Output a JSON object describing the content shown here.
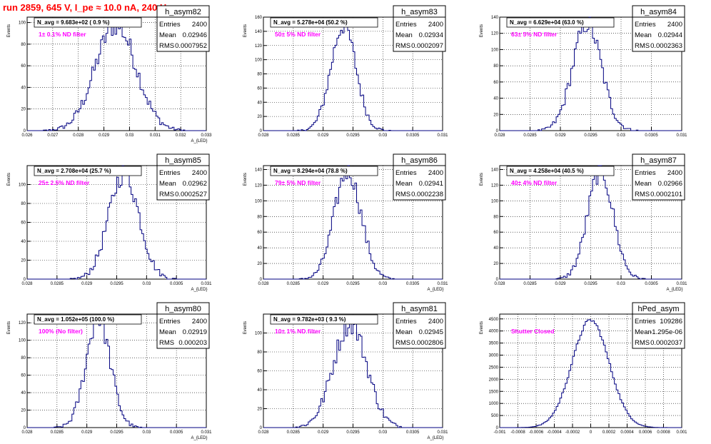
{
  "run_title": "run 2859,   645 V, I_pe ≈ 10.0 nA, 240 Hz",
  "colors": {
    "histogram": "#000080",
    "title": "#ff0000",
    "annotation": "#ff00ff",
    "grid": "#000000"
  },
  "chart_data": [
    {
      "type": "bar",
      "name": "h_asym82",
      "ylabel": "Events",
      "xlabel": "A_{LED}",
      "navg": "N_avg = 9.683e+02 ( 0.9 %)",
      "filter": "1± 0.1% ND filter",
      "stats": [
        [
          "Entries",
          "2400"
        ],
        [
          "Mean",
          "0.02946"
        ],
        [
          "RMS",
          "0.0007952"
        ]
      ],
      "xlim": [
        0.026,
        0.033
      ],
      "ylim": [
        0,
        105
      ],
      "xticks": [
        "0.026",
        "0.027",
        "0.028",
        "0.029",
        "0.03",
        "0.031",
        "0.032",
        "0.033"
      ],
      "yticks": [
        0,
        20,
        40,
        60,
        80,
        100
      ],
      "mean": 0.02946,
      "rms": 0.0007952,
      "peak": 98
    },
    {
      "type": "bar",
      "name": "h_asym83",
      "ylabel": "Events",
      "xlabel": "",
      "navg": "N_avg = 5.278e+04 (50.2 %)",
      "filter": "50± 5% ND filter",
      "stats": [
        [
          "Entries",
          "2400"
        ],
        [
          "Mean",
          "0.02934"
        ],
        [
          "RMS",
          "0.0002097"
        ]
      ],
      "xlim": [
        0.028,
        0.031
      ],
      "ylim": [
        0,
        160
      ],
      "xticks": [
        "0.028",
        "0.0285",
        "0.029",
        "0.0295",
        "0.03",
        "0.0305",
        "0.031"
      ],
      "yticks": [
        0,
        20,
        40,
        60,
        80,
        100,
        120,
        140,
        160
      ],
      "mean": 0.02934,
      "rms": 0.0002097,
      "peak": 148
    },
    {
      "type": "bar",
      "name": "h_asym84",
      "ylabel": "Events",
      "xlabel": "",
      "navg": "N_avg = 6.629e+04 (63.0 %)",
      "filter": "63± 5% ND filter",
      "stats": [
        [
          "Entries",
          "2400"
        ],
        [
          "Mean",
          "0.02944"
        ],
        [
          "RMS",
          "0.0002363"
        ]
      ],
      "xlim": [
        0.028,
        0.031
      ],
      "ylim": [
        0,
        140
      ],
      "xticks": [
        "0.028",
        "0.0285",
        "0.029",
        "0.0295",
        "0.03",
        "0.0305",
        "0.031"
      ],
      "yticks": [
        0,
        20,
        40,
        60,
        80,
        100,
        120,
        140
      ],
      "mean": 0.02944,
      "rms": 0.0002363,
      "peak": 132
    },
    {
      "type": "bar",
      "name": "h_asym85",
      "ylabel": "Events",
      "xlabel": "A_{LED}",
      "navg": "N_avg = 2.708e+04 (25.7 %)",
      "filter": "25± 2.5% ND filter",
      "stats": [
        [
          "Entries",
          "2400"
        ],
        [
          "Mean",
          "0.02962"
        ],
        [
          "RMS",
          "0.0002527"
        ]
      ],
      "xlim": [
        0.028,
        0.031
      ],
      "ylim": [
        0,
        120
      ],
      "xticks": [
        "0.028",
        "0.0285",
        "0.029",
        "0.0295",
        "0.03",
        "0.0305",
        "0.031"
      ],
      "yticks": [
        0,
        20,
        40,
        60,
        80,
        100
      ],
      "mean": 0.02962,
      "rms": 0.0002527,
      "peak": 112
    },
    {
      "type": "bar",
      "name": "h_asym86",
      "ylabel": "Events",
      "xlabel": "A_{LED}",
      "navg": "N_avg = 8.294e+04 (78.8 %)",
      "filter": "79± 5% ND filter",
      "stats": [
        [
          "Entries",
          "2400"
        ],
        [
          "Mean",
          "0.02941"
        ],
        [
          "RMS",
          "0.0002238"
        ]
      ],
      "xlim": [
        0.028,
        0.031
      ],
      "ylim": [
        0,
        145
      ],
      "xticks": [
        "0.028",
        "0.0285",
        "0.029",
        "0.0295",
        "0.03",
        "0.0305",
        "0.031"
      ],
      "yticks": [
        0,
        20,
        40,
        60,
        80,
        100,
        120,
        140
      ],
      "mean": 0.02941,
      "rms": 0.0002238,
      "peak": 138
    },
    {
      "type": "bar",
      "name": "h_asym87",
      "ylabel": "Events",
      "xlabel": "A_{LED}",
      "navg": "N_avg = 4.258e+04 (40.5 %)",
      "filter": "40± 4% ND filter",
      "stats": [
        [
          "Entries",
          "2400"
        ],
        [
          "Mean",
          "0.02966"
        ],
        [
          "RMS",
          "0.0002101"
        ]
      ],
      "xlim": [
        0.028,
        0.031
      ],
      "ylim": [
        0,
        145
      ],
      "xticks": [
        "0.028",
        "0.0285",
        "0.029",
        "0.0295",
        "0.03",
        "0.0305",
        "0.031"
      ],
      "yticks": [
        0,
        20,
        40,
        60,
        80,
        100,
        120,
        140
      ],
      "mean": 0.02966,
      "rms": 0.0002101,
      "peak": 138
    },
    {
      "type": "bar",
      "name": "h_asym80",
      "ylabel": "Events",
      "xlabel": "A_{LED}",
      "navg": "N_avg = 1.052e+05 (100.0 %)",
      "filter": "100% (No filter)",
      "stats": [
        [
          "Entries",
          "2400"
        ],
        [
          "Mean",
          "0.02919"
        ],
        [
          "RMS",
          "0.000203"
        ]
      ],
      "xlim": [
        0.028,
        0.031
      ],
      "ylim": [
        0,
        130
      ],
      "xticks": [
        "0.028",
        "0.0285",
        "0.029",
        "0.0295",
        "0.03",
        "0.0305",
        "0.031"
      ],
      "yticks": [
        0,
        20,
        40,
        60,
        80,
        100,
        120
      ],
      "mean": 0.02919,
      "rms": 0.000203,
      "peak": 125
    },
    {
      "type": "bar",
      "name": "h_asym81",
      "ylabel": "Events",
      "xlabel": "A_{LED}",
      "navg": "N_avg = 9.782e+03 ( 9.3 %)",
      "filter": "10± 1% ND filter",
      "stats": [
        [
          "Entries",
          "2400"
        ],
        [
          "Mean",
          "0.02945"
        ],
        [
          "RMS",
          "0.0002806"
        ]
      ],
      "xlim": [
        0.028,
        0.031
      ],
      "ylim": [
        0,
        120
      ],
      "xticks": [
        "0.028",
        "0.0285",
        "0.029",
        "0.0295",
        "0.03",
        "0.0305",
        "0.031"
      ],
      "yticks": [
        0,
        20,
        40,
        60,
        80,
        100
      ],
      "mean": 0.02945,
      "rms": 0.0002806,
      "peak": 110
    },
    {
      "type": "bar",
      "name": "hPed_asym",
      "ylabel": "Events",
      "xlabel": "",
      "navg": "",
      "filter": "Shutter Closed",
      "stats": [
        [
          "Entries",
          "109286"
        ],
        [
          "Mean",
          "-1.295e-06"
        ],
        [
          "RMS",
          "0.0002037"
        ]
      ],
      "xlim": [
        -0.001,
        0.001
      ],
      "ylim": [
        0,
        4700
      ],
      "xticks": [
        "-0.001",
        "-0.0008",
        "-0.0006",
        "-0.0004",
        "-0.0002",
        "0",
        "0.0002",
        "0.0004",
        "0.0006",
        "0.0008",
        "0.001"
      ],
      "yticks": [
        0,
        500,
        1000,
        1500,
        2000,
        2500,
        3000,
        3500,
        4000,
        4500
      ],
      "mean": -1.295e-06,
      "rms": 0.0002037,
      "peak": 4450
    }
  ]
}
